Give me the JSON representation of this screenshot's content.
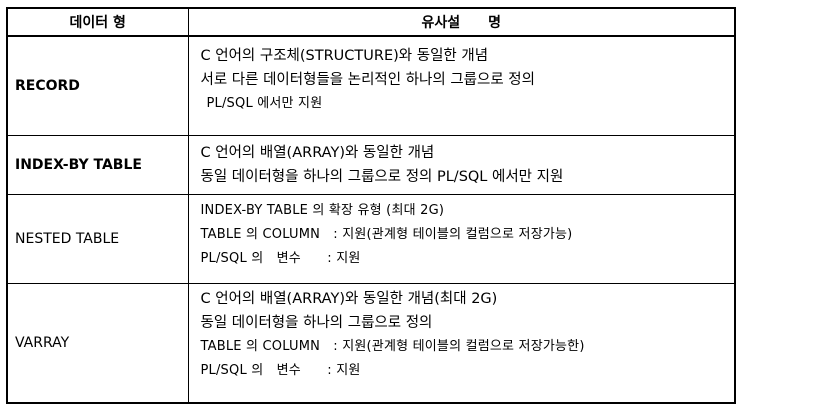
{
  "header": {
    "col1": "데이터 형",
    "col2": "유사설　　명"
  },
  "rows": [
    {
      "type": "RECORD",
      "lines": [
        "C 언어의 구조체(STRUCTURE)와 동일한 개념",
        "서로 다른 데이터형들을 논리적인 하나의 그룹으로 정의",
        "PL/SQL 에서만 지원"
      ]
    },
    {
      "type": "INDEX-BY TABLE",
      "lines": [
        "C 언어의 배열(ARRAY)와 동일한 개념",
        "동일 데이터형을 하나의 그룹으로 정의 PL/SQL 에서만 지원"
      ]
    },
    {
      "type": "NESTED TABLE",
      "lines": [
        "INDEX-BY TABLE 의 확장 유형 (최대 2G)",
        "TABLE 의 COLUMN　: 지원(관계형 테이블의 컬럼으로 저장가능)",
        "PL/SQL 의　변수　　: 지원"
      ]
    },
    {
      "type": "VARRAY",
      "lines": [
        "C 언어의 배열(ARRAY)와 동일한 개념(최대 2G)",
        "동일 데이터형을 하나의 그룹으로 정의",
        "TABLE 의 COLUMN　: 지원(관계형 테이블의 컬럼으로 저장가능한)",
        "PL/SQL 의　변수　　: 지원"
      ]
    }
  ]
}
